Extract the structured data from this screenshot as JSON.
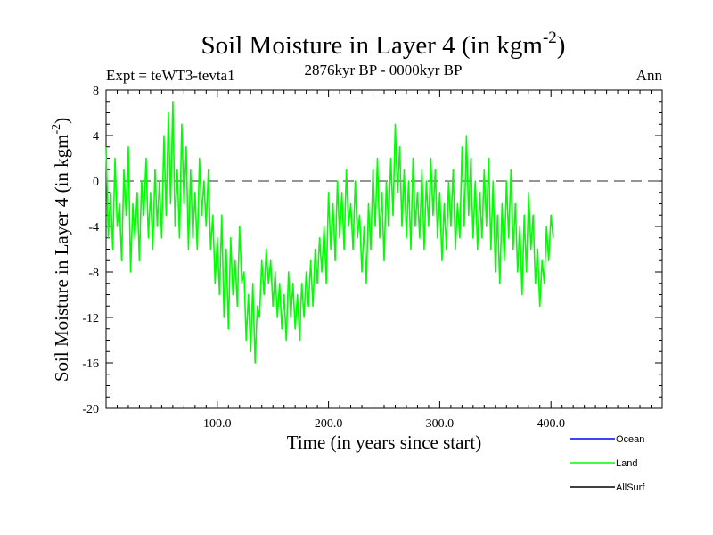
{
  "chart_data": {
    "type": "line",
    "title": "Soil Moisture in Layer 4 (in kgm",
    "title_sup": "-2",
    "title_close": ")",
    "subtitle_left": "Expt = teWT3-tevta1",
    "subtitle_center": "2876kyr BP - 0000kyr BP",
    "subtitle_right": "Ann",
    "xlabel": "Time (in years since start)",
    "ylabel": "Soil Moisture in Layer 4 (in kgm",
    "ylabel_sup": "-2",
    "ylabel_close": ")",
    "xlim": [
      0,
      500
    ],
    "ylim": [
      -20,
      8
    ],
    "x_ticks": [
      100,
      200,
      300,
      400
    ],
    "x_tick_labels": [
      "100.0",
      "200.0",
      "300.0",
      "400.0"
    ],
    "y_ticks": [
      8,
      4,
      0,
      -4,
      -8,
      -12,
      -16,
      -20
    ],
    "y_tick_labels": [
      "8",
      "4",
      "0",
      "-4",
      "-8",
      "-12",
      "-16",
      "-20"
    ],
    "zero_line": 0,
    "series": [
      {
        "name": "Ocean",
        "color": "#0000ff",
        "values": []
      },
      {
        "name": "Land",
        "color": "#00ff00",
        "x_start": 0,
        "x_step": 2,
        "values": [
          3,
          -5,
          -1,
          -6,
          2,
          -4,
          -2,
          -7,
          1,
          -3,
          3,
          -8,
          -2,
          -5,
          -1,
          -7,
          0,
          -3,
          2,
          -5,
          -1,
          -6,
          1,
          -4,
          0,
          -5,
          4,
          -3,
          6,
          -2,
          7,
          -4,
          1,
          -5,
          5,
          -2,
          3,
          -6,
          1,
          -5,
          -1,
          -6,
          2,
          -3,
          0,
          -4,
          1,
          -6,
          -3,
          -9,
          -5,
          -10,
          -3,
          -12,
          -6,
          -13,
          -5,
          -10,
          -7,
          -11,
          -4,
          -9,
          -8,
          -14,
          -10,
          -15,
          -9,
          -16,
          -11,
          -12,
          -7,
          -10,
          -6,
          -9,
          -7,
          -11,
          -8,
          -12,
          -9,
          -13,
          -10,
          -14,
          -8,
          -12,
          -9,
          -13,
          -10,
          -14,
          -9,
          -12,
          -8,
          -11,
          -7,
          -11,
          -6,
          -9,
          -5,
          -8,
          -4,
          -9,
          -1,
          -6,
          -2,
          -7,
          0,
          -5,
          -1,
          -6,
          1,
          -4,
          -2,
          -6,
          0,
          -5,
          -3,
          -8,
          -4,
          -9,
          -2,
          -6,
          1,
          -4,
          2,
          -5,
          -1,
          -7,
          0,
          -4,
          2,
          -3,
          5,
          -1,
          3,
          -4,
          1,
          -5,
          0,
          -6,
          2,
          -4,
          -1,
          -5,
          1,
          -6,
          0,
          -4,
          2,
          -3,
          1,
          -5,
          -1,
          -7,
          -2,
          -6,
          0,
          -4,
          1,
          -6,
          -2,
          -5,
          3,
          -4,
          4,
          -3,
          2,
          -5,
          0,
          -6,
          -1,
          -5,
          1,
          -4,
          2,
          -6,
          0,
          -8,
          -3,
          -9,
          -2,
          -7,
          0,
          -5,
          1,
          -6,
          -2,
          -8,
          -4,
          -10,
          -3,
          -8,
          -1,
          -6,
          -3,
          -9,
          -6,
          -11,
          -7,
          -9,
          -4,
          -7,
          -3,
          -5
        ]
      },
      {
        "name": "AllSurf",
        "color": "#000000",
        "values": []
      }
    ]
  }
}
